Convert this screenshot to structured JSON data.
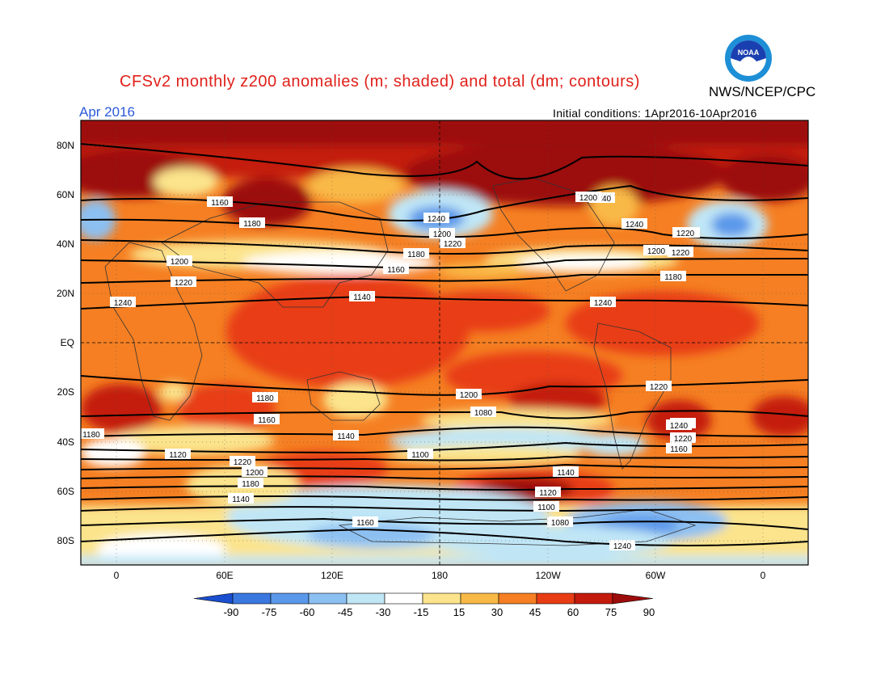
{
  "header": {
    "title": "CFSv2 monthly z200 anomalies (m; shaded) and total (dm; contours)",
    "agency": "NWS/NCEP/CPC",
    "month": "Apr 2016",
    "initial_conditions": "Initial conditions: 1Apr2016-10Apr2016",
    "logo_text": "NOAA"
  },
  "colors": {
    "title": "#e0201a",
    "month": "#2a5ad8",
    "levels": [
      "#1a4fd0",
      "#3a78e0",
      "#5a98ea",
      "#8cc0f2",
      "#c0e6f6",
      "#ffffff",
      "#fbe48c",
      "#f9b946",
      "#f57f22",
      "#e83c14",
      "#c41a0c",
      "#9c0c0a"
    ]
  },
  "map": {
    "lat_labels": [
      "80N",
      "60N",
      "40N",
      "20N",
      "EQ",
      "20S",
      "40S",
      "60S",
      "80S"
    ],
    "lon_labels": [
      "0",
      "60E",
      "120E",
      "180",
      "120W",
      "60W",
      "0"
    ],
    "contour_labels": [
      "1160",
      "1180",
      "1200",
      "1220",
      "1240",
      "1140",
      "1160",
      "1180",
      "1200",
      "1220",
      "1240",
      "1240",
      "1240",
      "1200",
      "1220",
      "1180",
      "1240",
      "1220",
      "1200",
      "1180",
      "1160",
      "1140",
      "1120",
      "1100",
      "1080",
      "1240",
      "1220",
      "1160",
      "1140",
      "1120",
      "1100",
      "1080",
      "1240",
      "1220",
      "1200",
      "1180",
      "1140",
      "1160",
      "1180",
      "1200",
      "1220",
      "1240",
      "1200"
    ]
  },
  "colorbar": {
    "ticks": [
      "-90",
      "-75",
      "-60",
      "-45",
      "-30",
      "-15",
      "15",
      "30",
      "45",
      "60",
      "75",
      "90"
    ]
  }
}
